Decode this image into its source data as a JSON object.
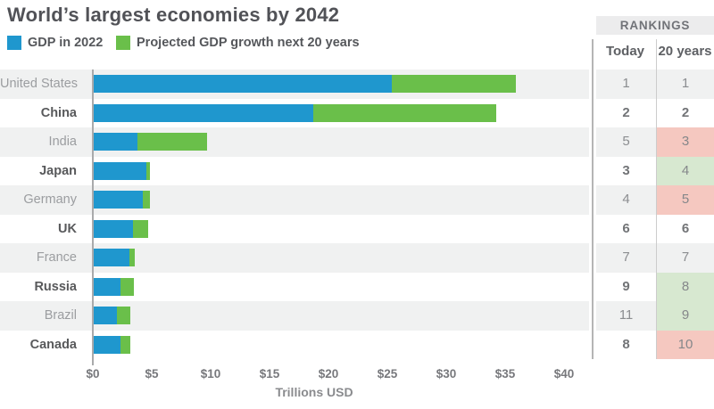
{
  "title": "World’s largest economies by 2042",
  "legend": [
    {
      "label": "GDP in 2022",
      "color": "#1f97ce"
    },
    {
      "label": "Projected GDP growth next 20 years",
      "color": "#6abf4a"
    }
  ],
  "rankings_header": {
    "title": "RANKINGS",
    "col_today": "Today",
    "col_20years": "20 years"
  },
  "colors": {
    "bar_gdp": "#1f97ce",
    "bar_growth": "#6abf4a",
    "cell_pink": "#f5c8c0",
    "cell_green": "#d7e8d0",
    "row_stripe": "#f0f1f1"
  },
  "chart_data": {
    "type": "bar",
    "subtype": "horizontal-stacked",
    "title": "World’s largest economies by 2042",
    "xlabel": "Trillions USD",
    "xlim": [
      0,
      42.5
    ],
    "x_ticks": [
      "$0",
      "$5",
      "$10",
      "$15",
      "$20",
      "$25",
      "$30",
      "$35",
      "$40"
    ],
    "x_tick_values": [
      0,
      5,
      10,
      15,
      20,
      25,
      30,
      35,
      40
    ],
    "grid": false,
    "legend_position": "top-left",
    "categories": [
      "United States",
      "China",
      "India",
      "Japan",
      "Germany",
      "UK",
      "France",
      "Russia",
      "Brazil",
      "Canada"
    ],
    "series": [
      {
        "name": "GDP in 2022",
        "color": "#1f97ce",
        "values": [
          25.3,
          18.6,
          3.7,
          4.5,
          4.2,
          3.3,
          3.0,
          2.3,
          2.0,
          2.3
        ]
      },
      {
        "name": "Projected GDP growth next 20 years",
        "color": "#6abf4a",
        "values": [
          10.5,
          15.6,
          5.9,
          0.3,
          0.6,
          1.3,
          0.5,
          1.1,
          1.1,
          0.8
        ]
      }
    ],
    "rows": [
      {
        "country": "United States",
        "gdp_2022": 25.3,
        "growth": 10.5,
        "rank_today": "1",
        "rank_20_years": "1",
        "highlight": "none"
      },
      {
        "country": "China",
        "gdp_2022": 18.6,
        "growth": 15.6,
        "rank_today": "2",
        "rank_20_years": "2",
        "highlight": "none"
      },
      {
        "country": "India",
        "gdp_2022": 3.7,
        "growth": 5.9,
        "rank_today": "5",
        "rank_20_years": "3",
        "highlight": "pink"
      },
      {
        "country": "Japan",
        "gdp_2022": 4.5,
        "growth": 0.3,
        "rank_today": "3",
        "rank_20_years": "4",
        "highlight": "green"
      },
      {
        "country": "Germany",
        "gdp_2022": 4.2,
        "growth": 0.6,
        "rank_today": "4",
        "rank_20_years": "5",
        "highlight": "pink"
      },
      {
        "country": "UK",
        "gdp_2022": 3.3,
        "growth": 1.3,
        "rank_today": "6",
        "rank_20_years": "6",
        "highlight": "none"
      },
      {
        "country": "France",
        "gdp_2022": 3.0,
        "growth": 0.5,
        "rank_today": "7",
        "rank_20_years": "7",
        "highlight": "none"
      },
      {
        "country": "Russia",
        "gdp_2022": 2.3,
        "growth": 1.1,
        "rank_today": "9",
        "rank_20_years": "8",
        "highlight": "green"
      },
      {
        "country": "Brazil",
        "gdp_2022": 2.0,
        "growth": 1.1,
        "rank_today": "11",
        "rank_20_years": "9",
        "highlight": "green"
      },
      {
        "country": "Canada",
        "gdp_2022": 2.3,
        "growth": 0.8,
        "rank_today": "8",
        "rank_20_years": "10",
        "highlight": "pink"
      }
    ]
  },
  "axis": {
    "label": "Trillions USD"
  }
}
